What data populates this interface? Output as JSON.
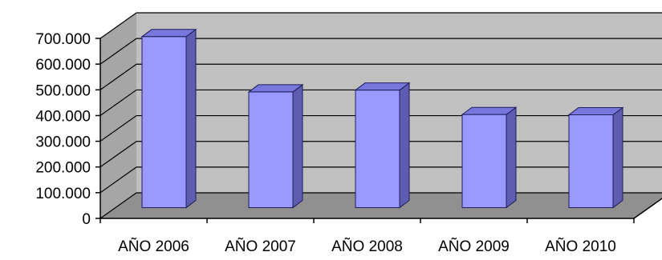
{
  "chart_data": {
    "type": "bar",
    "title": "",
    "xlabel": "",
    "ylabel": "",
    "categories": [
      "AÑO 2006",
      "AÑO 2007",
      "AÑO 2008",
      "AÑO 2009",
      "AÑO 2010"
    ],
    "values": [
      665000,
      450000,
      457000,
      362000,
      361000
    ],
    "ylim": [
      0,
      700000
    ],
    "yticks": [
      0,
      100000,
      200000,
      300000,
      400000,
      500000,
      600000,
      700000
    ],
    "ytick_labels": [
      "0",
      "100.000",
      "200.000",
      "300.000",
      "400.000",
      "500.000",
      "600.000",
      "700.000"
    ],
    "grid": true,
    "style": "3d-column",
    "colors": {
      "bar_front": "#9999ff",
      "bar_side": "#5c5cb0",
      "bar_top": "#7777dd",
      "bar_outline": "#1e1e5a",
      "wall_back": "#c0c0c0",
      "wall_left": "#a6a6a6",
      "floor": "#909090",
      "gridline": "#000000"
    }
  }
}
